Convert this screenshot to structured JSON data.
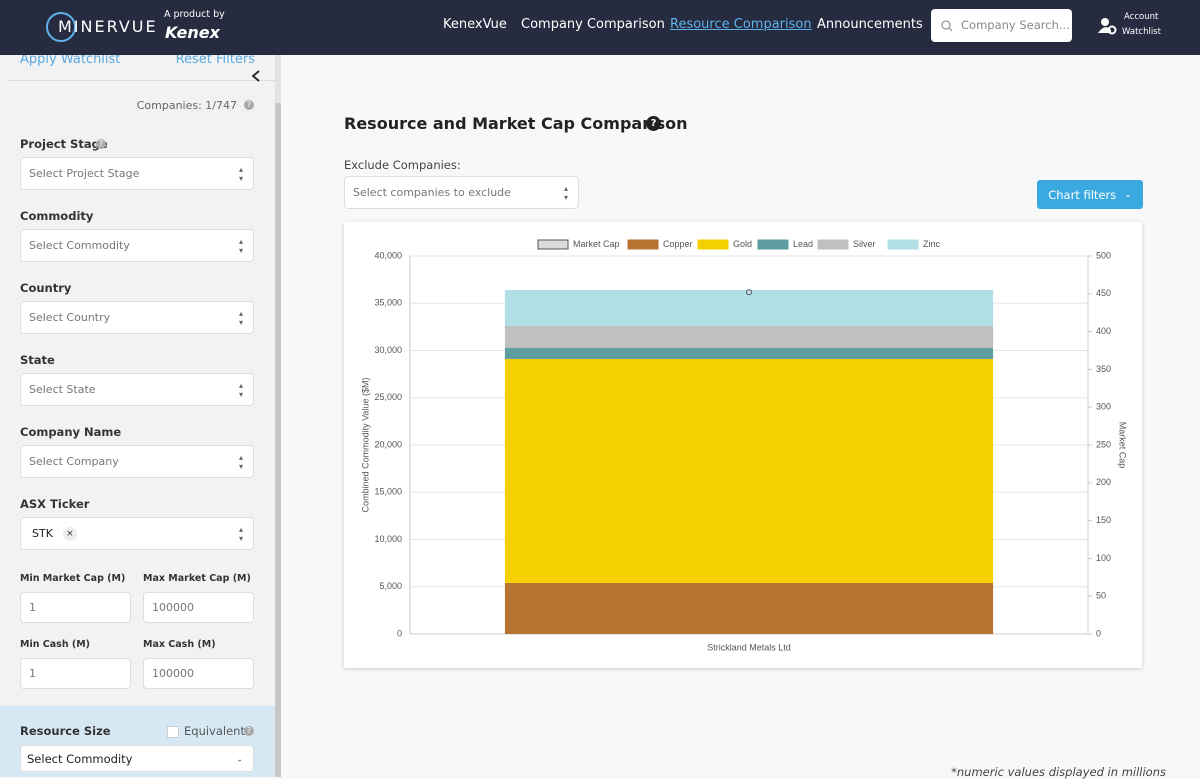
{
  "header": {
    "logo": "MINERVUE",
    "tagline": "A product by",
    "brand": "Kenex",
    "nav": [
      "KenexVue",
      "Company Comparison",
      "Resource Comparison",
      "Announcements"
    ],
    "search_placeholder": "Company Search...",
    "account": "Account",
    "watchlist": "Watchlist"
  },
  "sidebar": {
    "apply_watchlist": "Apply Watchlist",
    "reset_filters": "Reset Filters",
    "companies_count": "Companies: 1/747",
    "filters": [
      {
        "label": "Project Stage",
        "placeholder": "Select Project Stage"
      },
      {
        "label": "Commodity",
        "placeholder": "Select Commodity"
      },
      {
        "label": "Country",
        "placeholder": "Select Country"
      },
      {
        "label": "State",
        "placeholder": "Select State"
      },
      {
        "label": "Company Name",
        "placeholder": "Select Company"
      }
    ],
    "asx_ticker": {
      "label": "ASX Ticker",
      "chip": "STK"
    },
    "ranges": [
      {
        "label": "Min Market Cap (M)",
        "value": "1"
      },
      {
        "label": "Max Market Cap (M)",
        "value": "100000"
      },
      {
        "label": "Min Cash (M)",
        "value": "1"
      },
      {
        "label": "Max Cash (M)",
        "value": "100000"
      }
    ],
    "resource_size": {
      "label": "Resource Size",
      "equivalent": "Equivalent",
      "placeholder": "Select Commodity"
    }
  },
  "main": {
    "title": "Resource and Market Cap Comparison",
    "exclude_label": "Exclude Companies:",
    "exclude_placeholder": "Select companies to exclude",
    "chart_filters": "Chart filters",
    "footnote": "*numeric values displayed in millions"
  },
  "chart_data": {
    "type": "bar",
    "stacked": true,
    "categories": [
      "Strickland Metals Ltd"
    ],
    "series": [
      {
        "name": "Market Cap",
        "color": "#dcdcdc",
        "axis": "y2",
        "values": [
          452
        ]
      },
      {
        "name": "Copper",
        "color": "#b87333",
        "values": [
          5400
        ]
      },
      {
        "name": "Gold",
        "color": "#f5d000",
        "values": [
          23700
        ]
      },
      {
        "name": "Lead",
        "color": "#5f9ea0",
        "values": [
          1200
        ]
      },
      {
        "name": "Silver",
        "color": "#c0c0c0",
        "values": [
          2300
        ]
      },
      {
        "name": "Zinc",
        "color": "#b0e0e6",
        "values": [
          3800
        ]
      }
    ],
    "ylabel": "Combined Commodity Value ($M)",
    "y2label": "Market Cap",
    "ylim": [
      0,
      40000
    ],
    "yticks": [
      0,
      {
        "value": 5000,
        "label": "5,000"
      },
      {
        "value": 10000,
        "label": "10,000"
      },
      {
        "value": 15000,
        "label": "15,000"
      },
      {
        "value": 20000,
        "label": "20,000"
      },
      {
        "value": 25000,
        "label": "25,000"
      },
      {
        "value": 30000,
        "label": "30,000"
      },
      {
        "value": 35000,
        "label": "35,000"
      },
      {
        "value": 40000,
        "label": "40,000"
      }
    ],
    "y2lim": [
      0,
      500
    ],
    "y2ticks": [
      0,
      50,
      100,
      150,
      200,
      250,
      300,
      350,
      400,
      450,
      500
    ],
    "grid": true,
    "legend": "top"
  }
}
